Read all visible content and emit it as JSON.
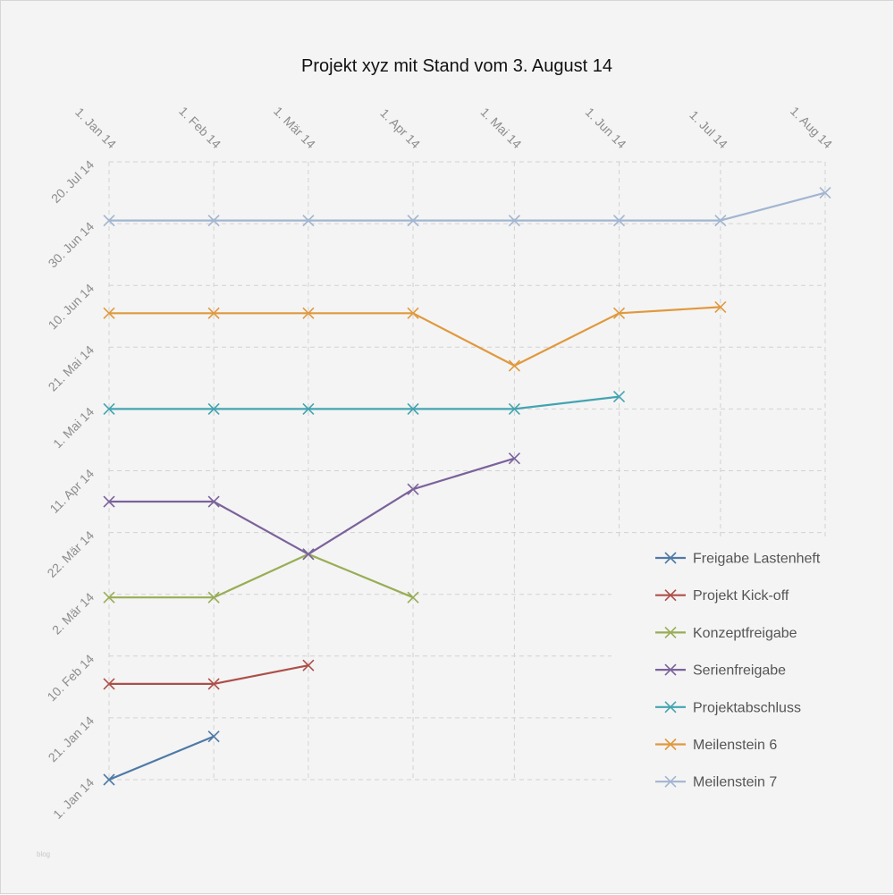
{
  "watermark": "blog",
  "chart_data": {
    "type": "line",
    "title": "Projekt xyz mit Stand vom 3. August 14",
    "x_ticks": [
      "1. Jan 14",
      "1. Feb 14",
      "1. Mär 14",
      "1. Apr 14",
      "1. Mai 14",
      "1. Jun 14",
      "1. Jul 14",
      "1. Aug 14"
    ],
    "x_tick_days": [
      0,
      31,
      59,
      90,
      120,
      151,
      181,
      212
    ],
    "y_ticks": [
      "1. Jan 14",
      "21. Jan 14",
      "10. Feb 14",
      "2. Mär 14",
      "22. Mär 14",
      "11. Apr 14",
      "1. Mai 14",
      "21. Mai 14",
      "10. Jun 14",
      "30. Jun 14",
      "20. Jul 14"
    ],
    "y_tick_days": [
      0,
      20,
      40,
      60,
      80,
      100,
      120,
      140,
      160,
      180,
      200
    ],
    "xlim_days": [
      0,
      212
    ],
    "ylim_days": [
      0,
      200
    ],
    "units": "days since 1. Jan 14",
    "grid": true,
    "legend_position": "bottom-right",
    "series": [
      {
        "name": "Freigabe Lastenheft",
        "color": "#4e7aa6",
        "x": [
          0,
          31
        ],
        "y": [
          0,
          14
        ]
      },
      {
        "name": "Projekt Kick-off",
        "color": "#ad4f49",
        "x": [
          0,
          31,
          59
        ],
        "y": [
          31,
          31,
          37
        ]
      },
      {
        "name": "Konzeptfreigabe",
        "color": "#98ad55",
        "x": [
          0,
          31,
          59,
          90
        ],
        "y": [
          59,
          59,
          73,
          59
        ]
      },
      {
        "name": "Serienfreigabe",
        "color": "#7b629b",
        "x": [
          0,
          31,
          59,
          90,
          120
        ],
        "y": [
          90,
          90,
          73,
          94,
          104
        ]
      },
      {
        "name": "Projektabschluss",
        "color": "#43a4b0",
        "x": [
          0,
          31,
          59,
          90,
          120,
          151
        ],
        "y": [
          120,
          120,
          120,
          120,
          120,
          124
        ]
      },
      {
        "name": "Meilenstein 6",
        "color": "#e0993d",
        "x": [
          0,
          31,
          59,
          90,
          120,
          151,
          181
        ],
        "y": [
          151,
          151,
          151,
          151,
          134,
          151,
          153
        ]
      },
      {
        "name": "Meilenstein 7",
        "color": "#a2b5d1",
        "x": [
          0,
          31,
          59,
          90,
          120,
          151,
          181,
          212
        ],
        "y": [
          181,
          181,
          181,
          181,
          181,
          181,
          181,
          190
        ]
      }
    ]
  }
}
